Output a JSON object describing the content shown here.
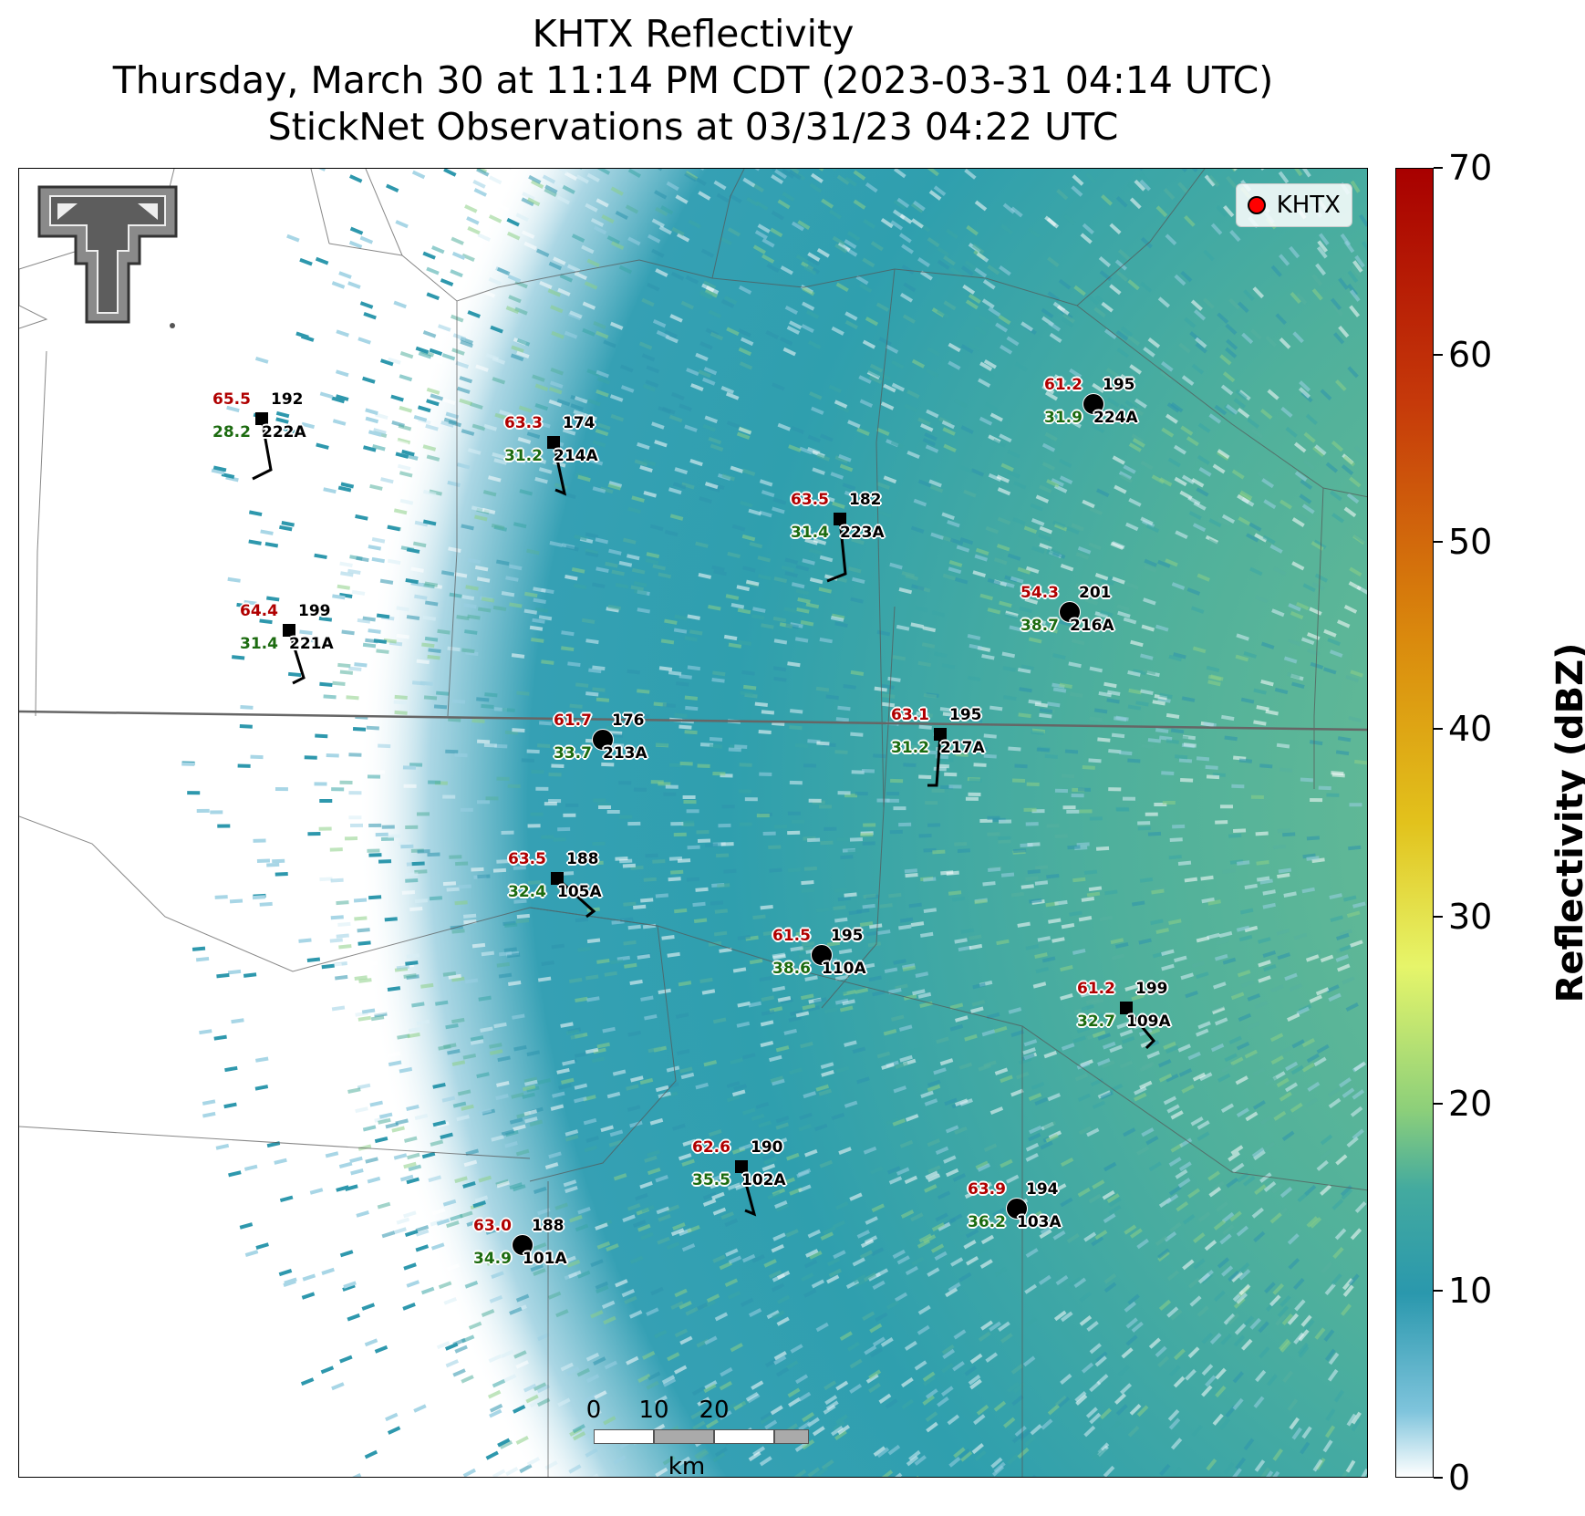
{
  "title": {
    "line1": "KHTX Reflectivity",
    "line2": "Thursday, March 30 at 11:14 PM CDT (2023-03-31 04:14 UTC)",
    "line3": "StickNet Observations at 03/31/23 04:22 UTC"
  },
  "legend": {
    "label": "KHTX",
    "marker_color": "#ff0000"
  },
  "scalebar": {
    "ticks": [
      "0",
      "10",
      "20"
    ],
    "unit": "km"
  },
  "colorbar": {
    "title": "Reflectivity (dBZ)",
    "ticks": [
      "0",
      "10",
      "20",
      "30",
      "40",
      "50",
      "60",
      "70"
    ]
  },
  "stations": [
    {
      "id": "222A",
      "temp": "65.5",
      "dew": "28.2",
      "dir": "192",
      "marker": "square"
    },
    {
      "id": "214A",
      "temp": "63.3",
      "dew": "31.2",
      "dir": "174",
      "marker": "square"
    },
    {
      "id": "224A",
      "temp": "61.2",
      "dew": "31.9",
      "dir": "195",
      "marker": "circle"
    },
    {
      "id": "223A",
      "temp": "63.5",
      "dew": "31.4",
      "dir": "182",
      "marker": "square"
    },
    {
      "id": "221A",
      "temp": "64.4",
      "dew": "31.4",
      "dir": "199",
      "marker": "square"
    },
    {
      "id": "216A",
      "temp": "54.3",
      "dew": "38.7",
      "dir": "201",
      "marker": "circle"
    },
    {
      "id": "213A",
      "temp": "61.7",
      "dew": "33.7",
      "dir": "176",
      "marker": "circle"
    },
    {
      "id": "217A",
      "temp": "63.1",
      "dew": "31.2",
      "dir": "195",
      "marker": "square"
    },
    {
      "id": "105A",
      "temp": "63.5",
      "dew": "32.4",
      "dir": "188",
      "marker": "square"
    },
    {
      "id": "110A",
      "temp": "61.5",
      "dew": "38.6",
      "dir": "195",
      "marker": "circle"
    },
    {
      "id": "109A",
      "temp": "61.2",
      "dew": "32.7",
      "dir": "199",
      "marker": "square"
    },
    {
      "id": "102A",
      "temp": "62.6",
      "dew": "35.5",
      "dir": "190",
      "marker": "square"
    },
    {
      "id": "103A",
      "temp": "63.9",
      "dew": "36.2",
      "dir": "194",
      "marker": "circle"
    },
    {
      "id": "101A",
      "temp": "63.0",
      "dew": "34.9",
      "dir": "188",
      "marker": "circle"
    }
  ]
}
